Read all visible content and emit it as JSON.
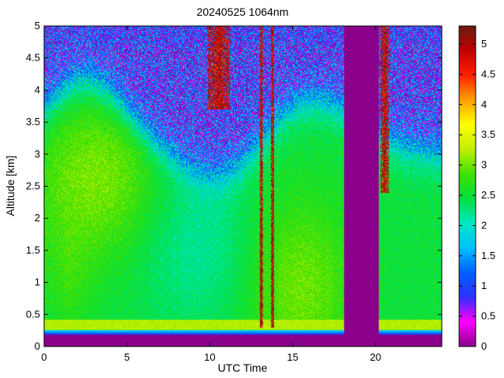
{
  "chart_data": {
    "type": "heatmap",
    "title": "20240525 1064nm",
    "xlabel": "UTC Time",
    "ylabel": "Altitude [km]",
    "xlim": [
      0,
      24
    ],
    "ylim": [
      0,
      5
    ],
    "xticks": [
      0,
      5,
      10,
      15,
      20
    ],
    "yticks": [
      0,
      0.5,
      1,
      1.5,
      2,
      2.5,
      3,
      3.5,
      4,
      4.5,
      5
    ],
    "colorbar": {
      "range": [
        0,
        5.3
      ],
      "ticks": [
        0,
        0.5,
        1,
        1.5,
        2,
        2.5,
        3,
        3.5,
        4,
        4.5,
        5
      ],
      "colormap": [
        "#8b008b",
        "#ff00ff",
        "#3030ff",
        "#0060ff",
        "#00c0ff",
        "#00e8c0",
        "#00e040",
        "#40e000",
        "#c0f000",
        "#ffff00",
        "#ffa000",
        "#ff2000",
        "#c00000",
        "#6b1a10"
      ]
    },
    "no_data_intervals": [
      [
        18.1,
        20.2
      ]
    ],
    "features": {
      "surface_layer_top_km": 0.2,
      "dense_layers": [
        {
          "time_start": 9.9,
          "time_end": 11.2,
          "alt_low_km": 3.7,
          "alt_high_km": 5.0
        },
        {
          "time_start": 13.0,
          "time_end": 13.2,
          "alt_low_km": 0.3,
          "alt_high_km": 5.0
        },
        {
          "time_start": 13.7,
          "time_end": 13.9,
          "alt_low_km": 0.3,
          "alt_high_km": 5.0
        },
        {
          "time_start": 20.3,
          "time_end": 20.8,
          "alt_low_km": 2.4,
          "alt_high_km": 5.0
        }
      ]
    }
  }
}
